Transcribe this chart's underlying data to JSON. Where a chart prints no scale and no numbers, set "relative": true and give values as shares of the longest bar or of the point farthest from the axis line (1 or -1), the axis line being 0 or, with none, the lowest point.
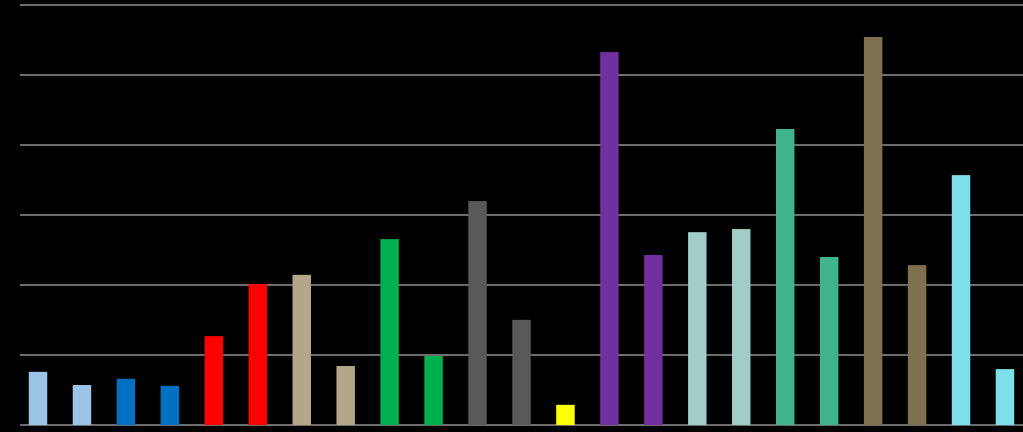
{
  "chart_data": {
    "type": "bar",
    "relative": true,
    "grid": true,
    "categories": [
      null,
      null,
      null,
      null,
      null,
      null,
      null,
      null,
      null,
      null,
      null,
      null,
      null,
      null,
      null,
      null,
      null,
      null,
      null,
      null,
      null,
      null,
      null
    ],
    "values": [
      0.137,
      0.103,
      0.119,
      0.101,
      0.229,
      0.363,
      0.387,
      0.152,
      0.479,
      0.178,
      0.577,
      0.271,
      0.052,
      0.961,
      0.438,
      0.497,
      0.505,
      0.763,
      0.433,
      1,
      0.412,
      0.644,
      0.144
    ],
    "colors": [
      "#9dc3e6",
      "#9dc3e6",
      "#0070c0",
      "#0070c0",
      "#ff0000",
      "#ff0000",
      "#b4a68a",
      "#b4a68a",
      "#00b050",
      "#00b050",
      "#595959",
      "#595959",
      "#ffff00",
      "#7030a0",
      "#7030a0",
      "#a2cdc6",
      "#a2cdc6",
      "#3fb38c",
      "#3fb38c",
      "#7f7050",
      "#7f7050",
      "#7fdfe8",
      "#7fdfe8"
    ]
  }
}
